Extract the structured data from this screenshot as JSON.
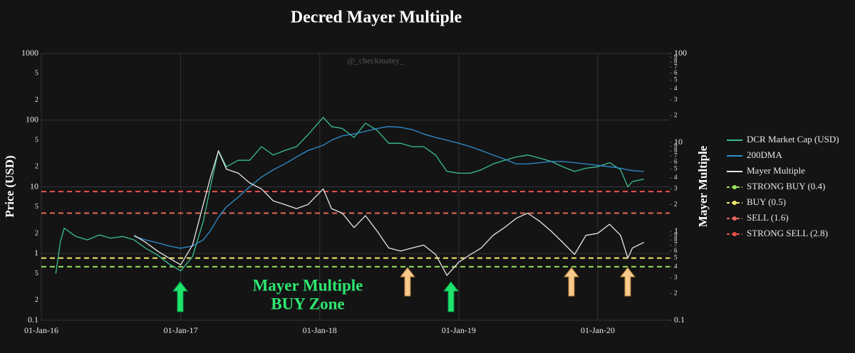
{
  "chart_data": {
    "type": "line",
    "title": "Decred Mayer Multiple",
    "watermark": "@_checkmatey_",
    "y_label": "Price (USD)",
    "y2_label": "Mayer Multiple",
    "annotation_lines": [
      "Mayer Multiple",
      "BUY Zone"
    ],
    "x": [
      "2016-02-08",
      "2016-02-20",
      "2016-03-01",
      "2016-04-01",
      "2016-05-01",
      "2016-06-01",
      "2016-07-01",
      "2016-08-01",
      "2016-09-01",
      "2016-10-01",
      "2016-11-01",
      "2016-12-01",
      "2017-01-01",
      "2017-02-01",
      "2017-03-01",
      "2017-03-20",
      "2017-04-10",
      "2017-05-01",
      "2017-06-01",
      "2017-07-01",
      "2017-08-01",
      "2017-09-01",
      "2017-10-01",
      "2017-11-01",
      "2017-12-01",
      "2018-01-10",
      "2018-02-01",
      "2018-03-01",
      "2018-04-01",
      "2018-05-01",
      "2018-06-01",
      "2018-07-01",
      "2018-08-01",
      "2018-09-01",
      "2018-10-01",
      "2018-11-01",
      "2018-12-01",
      "2019-01-01",
      "2019-02-01",
      "2019-03-01",
      "2019-04-01",
      "2019-05-01",
      "2019-06-01",
      "2019-07-01",
      "2019-08-01",
      "2019-09-01",
      "2019-10-01",
      "2019-11-01",
      "2019-12-01",
      "2020-01-01",
      "2020-02-01",
      "2020-03-01",
      "2020-03-20",
      "2020-04-01",
      "2020-05-01"
    ],
    "series": [
      {
        "name": "DCR Market Cap (USD)",
        "color": "#3cbf8e",
        "axis": "y",
        "values": [
          0.5,
          1.5,
          2.4,
          1.8,
          1.6,
          1.9,
          1.7,
          1.8,
          1.6,
          1.2,
          0.95,
          0.7,
          0.55,
          0.9,
          3,
          10,
          35,
          20,
          25,
          25,
          40,
          30,
          35,
          40,
          60,
          110,
          80,
          75,
          55,
          90,
          70,
          45,
          45,
          40,
          40,
          30,
          17,
          16,
          16,
          18,
          22,
          25,
          28,
          30,
          27,
          24,
          20,
          17,
          19,
          20,
          23,
          18,
          10,
          12,
          13
        ]
      },
      {
        "name": "200DMA",
        "color": "#2f8fd0",
        "axis": "y",
        "values": [
          null,
          null,
          null,
          null,
          null,
          null,
          null,
          null,
          1.8,
          1.6,
          1.45,
          1.3,
          1.2,
          1.3,
          1.6,
          2.2,
          3.5,
          5,
          7,
          10,
          14,
          18,
          22,
          28,
          35,
          42,
          50,
          58,
          62,
          68,
          75,
          80,
          78,
          72,
          62,
          55,
          50,
          45,
          40,
          35,
          30,
          26,
          22,
          22,
          23,
          24,
          24,
          23,
          22,
          21,
          20,
          19,
          18,
          17.5,
          17
        ]
      },
      {
        "name": "Mayer Multiple",
        "color": "#e6e6e6",
        "axis": "y2",
        "values": [
          null,
          null,
          null,
          null,
          null,
          null,
          null,
          null,
          0.9,
          0.75,
          0.6,
          0.5,
          0.42,
          0.7,
          2,
          4,
          8,
          5,
          4.5,
          3.5,
          3,
          2.2,
          2,
          1.8,
          2,
          3,
          1.8,
          1.6,
          1.1,
          1.5,
          1,
          0.65,
          0.6,
          0.65,
          0.7,
          0.55,
          0.32,
          0.45,
          0.55,
          0.65,
          0.9,
          1.1,
          1.4,
          1.6,
          1.3,
          1,
          0.75,
          0.55,
          0.9,
          0.95,
          1.2,
          0.9,
          0.5,
          0.65,
          0.75
        ]
      }
    ],
    "hlines": [
      {
        "name": "STRONG BUY (0.4)",
        "value": 0.4,
        "color": "#9be05a",
        "axis": "y2"
      },
      {
        "name": "BUY (0.5)",
        "value": 0.5,
        "color": "#f3e86a",
        "axis": "y2"
      },
      {
        "name": "SELL (1.6)",
        "value": 1.6,
        "color": "#e8665c",
        "axis": "y2"
      },
      {
        "name": "STRONG SELL (2.8)",
        "value": 2.8,
        "color": "#e8524a",
        "axis": "y2"
      }
    ],
    "xlim": [
      "2016-01-01",
      "2020-07-08"
    ],
    "xticks": [
      {
        "value": "2016-01-01",
        "label": "01-Jan-16"
      },
      {
        "value": "2017-01-01",
        "label": "01-Jan-17"
      },
      {
        "value": "2018-01-01",
        "label": "01-Jan-18"
      },
      {
        "value": "2019-01-01",
        "label": "01-Jan-19"
      },
      {
        "value": "2020-01-01",
        "label": "01-Jan-20"
      }
    ],
    "ylog": true,
    "ylim": [
      0.1,
      1000
    ],
    "yticks": [
      0.1,
      {
        "value": 0.2,
        "label": "2"
      },
      {
        "value": 0.5,
        "label": "5"
      },
      1,
      {
        "value": 2,
        "label": "2"
      },
      {
        "value": 5,
        "label": "5"
      },
      10,
      {
        "value": 20,
        "label": "2"
      },
      {
        "value": 50,
        "label": "5"
      },
      100,
      {
        "value": 200,
        "label": "2"
      },
      {
        "value": 500,
        "label": "5"
      },
      1000
    ],
    "y2log": true,
    "y2lim": [
      0.1,
      100
    ],
    "y2ticks": [
      0.1,
      {
        "value": 0.2,
        "label": "2"
      },
      {
        "value": 0.3,
        "label": "3"
      },
      {
        "value": 0.4,
        "label": "4"
      },
      {
        "value": 0.5,
        "label": "5"
      },
      {
        "value": 0.6,
        "label": "6"
      },
      {
        "value": 0.7,
        "label": "7"
      },
      {
        "value": 0.8,
        "label": "8"
      },
      {
        "value": 0.9,
        "label": "9"
      },
      1,
      2,
      3,
      4,
      5,
      6,
      7,
      8,
      9,
      10,
      {
        "value": 20,
        "label": "2"
      },
      {
        "value": 30,
        "label": "3"
      },
      {
        "value": 40,
        "label": "4"
      },
      {
        "value": 50,
        "label": "5"
      },
      {
        "value": 60,
        "label": "6"
      },
      {
        "value": 70,
        "label": "7"
      },
      {
        "value": 80,
        "label": "8"
      },
      {
        "value": 90,
        "label": "9"
      },
      100
    ],
    "grid": true,
    "legend": "right"
  }
}
